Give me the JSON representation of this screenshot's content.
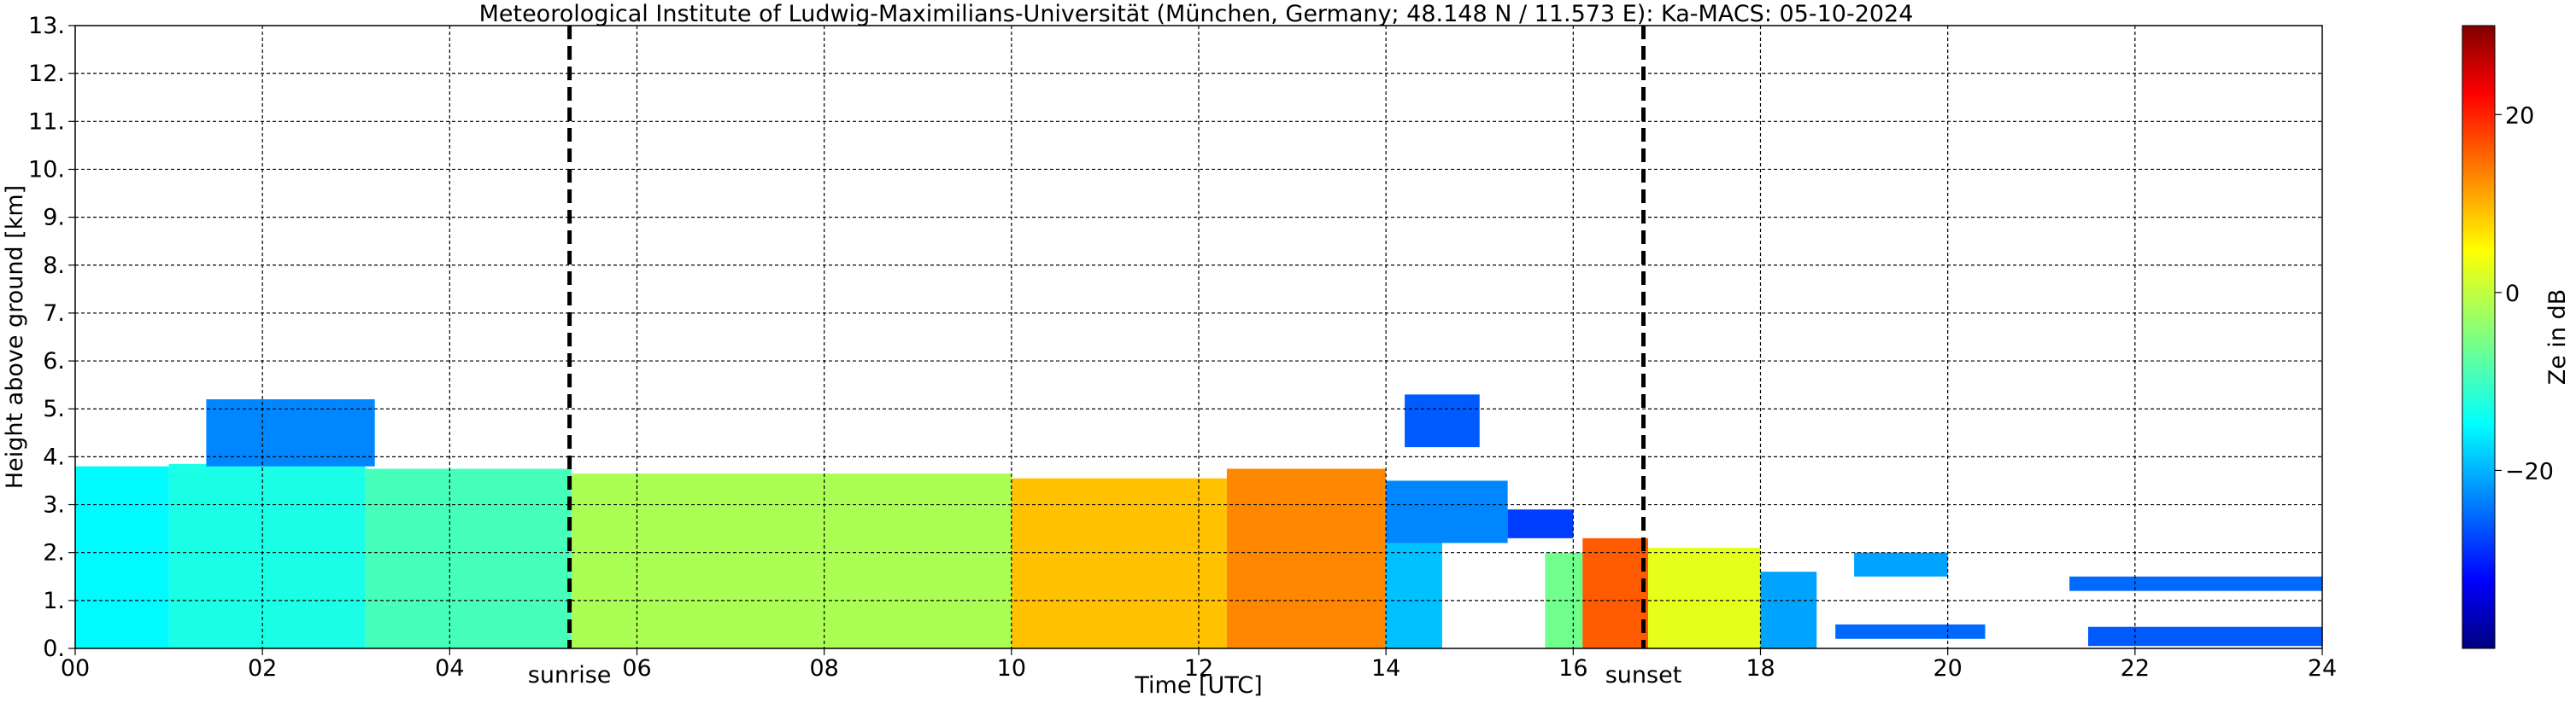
{
  "chart_data": {
    "type": "heatmap",
    "title": "Meteorological Institute of Ludwig-Maximilians-Universität (München, Germany; 48.148 N / 11.573 E):    Ka-MACS: 05-10-2024",
    "xlabel": "Time [UTC]",
    "ylabel": "Height above ground [km]",
    "xlim": [
      0,
      24
    ],
    "ylim": [
      0,
      13
    ],
    "x_ticks": [
      "00",
      "02",
      "04",
      "06",
      "08",
      "10",
      "12",
      "14",
      "16",
      "18",
      "20",
      "22",
      "24"
    ],
    "y_ticks": [
      "0.",
      "1.",
      "2.",
      "3.",
      "4.",
      "5.",
      "6.",
      "7.",
      "8.",
      "9.",
      "10.",
      "11.",
      "12.",
      "13."
    ],
    "grid": true,
    "colormap": "jet",
    "colorbar": {
      "label": "Ze in dB",
      "range": [
        -40,
        30
      ],
      "ticks": [
        "20",
        "0",
        "−20"
      ],
      "tick_values": [
        20,
        0,
        -20
      ]
    },
    "annotations": [
      {
        "label": "sunrise",
        "time_h": 5.28
      },
      {
        "label": "sunset",
        "time_h": 16.75
      }
    ],
    "echo_regions": [
      {
        "x0": 0.0,
        "x1": 1.0,
        "top_km": 3.8,
        "ze_dB": -14
      },
      {
        "x0": 1.0,
        "x1": 3.1,
        "top_km": 3.85,
        "ze_dB": -12
      },
      {
        "x0": 1.4,
        "x1": 3.2,
        "base_km": 3.8,
        "top_km": 5.2,
        "ze_dB": -22
      },
      {
        "x0": 3.1,
        "x1": 5.3,
        "top_km": 3.75,
        "ze_dB": -9
      },
      {
        "x0": 5.3,
        "x1": 10.0,
        "top_km": 3.65,
        "ze_dB": -2
      },
      {
        "x0": 10.0,
        "x1": 12.3,
        "top_km": 3.55,
        "ze_dB": 8
      },
      {
        "x0": 12.3,
        "x1": 14.0,
        "top_km": 3.75,
        "ze_dB": 12
      },
      {
        "x0": 14.0,
        "x1": 15.3,
        "base_km": 2.2,
        "top_km": 3.5,
        "ze_dB": -22
      },
      {
        "x0": 14.0,
        "x1": 14.6,
        "top_km": 2.2,
        "ze_dB": -18
      },
      {
        "x0": 14.2,
        "x1": 15.0,
        "base_km": 4.2,
        "top_km": 5.3,
        "ze_dB": -25
      },
      {
        "x0": 15.3,
        "x1": 16.0,
        "base_km": 2.3,
        "top_km": 2.9,
        "ze_dB": -27
      },
      {
        "x0": 15.7,
        "x1": 16.5,
        "top_km": 2.0,
        "ze_dB": -6
      },
      {
        "x0": 16.1,
        "x1": 16.8,
        "top_km": 2.3,
        "ze_dB": 15
      },
      {
        "x0": 16.8,
        "x1": 18.0,
        "top_km": 2.1,
        "ze_dB": 2
      },
      {
        "x0": 18.0,
        "x1": 18.6,
        "top_km": 1.6,
        "ze_dB": -20
      },
      {
        "x0": 19.0,
        "x1": 20.0,
        "base_km": 1.5,
        "top_km": 2.0,
        "ze_dB": -20
      },
      {
        "x0": 18.8,
        "x1": 20.4,
        "base_km": 0.2,
        "top_km": 0.5,
        "ze_dB": -24
      },
      {
        "x0": 21.3,
        "x1": 24.0,
        "base_km": 1.2,
        "top_km": 1.5,
        "ze_dB": -24
      },
      {
        "x0": 21.5,
        "x1": 24.0,
        "base_km": 0.05,
        "top_km": 0.45,
        "ze_dB": -25
      }
    ]
  }
}
